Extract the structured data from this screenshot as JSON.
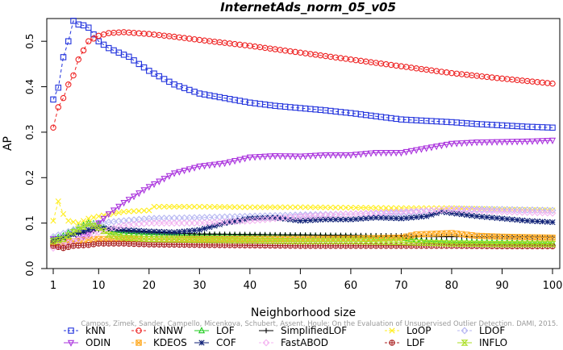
{
  "chart_data": {
    "type": "line",
    "title": "InternetAds_norm_05_v05",
    "xlabel": "Neighborhood size",
    "ylabel": "AP",
    "xlim": [
      1,
      100
    ],
    "ylim": [
      0,
      0.55
    ],
    "x_ticks": [
      "1",
      "10",
      "20",
      "30",
      "40",
      "50",
      "60",
      "70",
      "80",
      "90",
      "100"
    ],
    "y_ticks": [
      "0.0",
      "0.1",
      "0.2",
      "0.3",
      "0.4",
      "0.5"
    ],
    "legend_position": "bottom",
    "annotation": "Campos, Zimek, Sander, Campello, Micenkova, Schubert, Assent, Houle: On the Evaluation of Unsupervised Outlier Detection. DAMI, 2015.",
    "series": [
      {
        "name": "kNN",
        "color": "#2233dd",
        "marker": "square",
        "dash": "4,3",
        "points": [
          [
            1,
            0.372
          ],
          [
            2,
            0.398
          ],
          [
            3,
            0.465
          ],
          [
            4,
            0.5
          ],
          [
            5,
            0.545
          ],
          [
            6,
            0.537
          ],
          [
            7,
            0.535
          ],
          [
            8,
            0.53
          ],
          [
            10,
            0.5
          ],
          [
            12,
            0.485
          ],
          [
            14,
            0.475
          ],
          [
            16,
            0.466
          ],
          [
            18,
            0.45
          ],
          [
            20,
            0.435
          ],
          [
            25,
            0.405
          ],
          [
            30,
            0.385
          ],
          [
            35,
            0.375
          ],
          [
            40,
            0.365
          ],
          [
            45,
            0.358
          ],
          [
            50,
            0.353
          ],
          [
            55,
            0.348
          ],
          [
            60,
            0.342
          ],
          [
            65,
            0.335
          ],
          [
            70,
            0.328
          ],
          [
            75,
            0.325
          ],
          [
            80,
            0.322
          ],
          [
            85,
            0.318
          ],
          [
            90,
            0.315
          ],
          [
            95,
            0.312
          ],
          [
            100,
            0.31
          ]
        ]
      },
      {
        "name": "kNNW",
        "color": "#ee2222",
        "marker": "circle",
        "dash": "4,3",
        "points": [
          [
            1,
            0.31
          ],
          [
            2,
            0.355
          ],
          [
            3,
            0.375
          ],
          [
            4,
            0.405
          ],
          [
            5,
            0.425
          ],
          [
            6,
            0.46
          ],
          [
            7,
            0.48
          ],
          [
            8,
            0.5
          ],
          [
            10,
            0.512
          ],
          [
            12,
            0.518
          ],
          [
            15,
            0.52
          ],
          [
            20,
            0.516
          ],
          [
            25,
            0.51
          ],
          [
            30,
            0.503
          ],
          [
            40,
            0.49
          ],
          [
            50,
            0.475
          ],
          [
            60,
            0.46
          ],
          [
            70,
            0.445
          ],
          [
            80,
            0.43
          ],
          [
            90,
            0.418
          ],
          [
            100,
            0.407
          ]
        ]
      },
      {
        "name": "LOF",
        "color": "#22cc22",
        "marker": "triangle-up",
        "dash": "",
        "points": [
          [
            1,
            0.065
          ],
          [
            3,
            0.072
          ],
          [
            5,
            0.085
          ],
          [
            8,
            0.1
          ],
          [
            10,
            0.098
          ],
          [
            12,
            0.082
          ],
          [
            15,
            0.078
          ],
          [
            20,
            0.075
          ],
          [
            30,
            0.073
          ],
          [
            40,
            0.072
          ],
          [
            50,
            0.071
          ],
          [
            60,
            0.07
          ],
          [
            70,
            0.068
          ],
          [
            75,
            0.06
          ],
          [
            80,
            0.058
          ],
          [
            90,
            0.057
          ],
          [
            100,
            0.056
          ]
        ]
      },
      {
        "name": "SimplifiedLOF",
        "color": "#000000",
        "marker": "plus",
        "dash": "",
        "points": [
          [
            1,
            0.062
          ],
          [
            3,
            0.068
          ],
          [
            5,
            0.075
          ],
          [
            8,
            0.08
          ],
          [
            10,
            0.085
          ],
          [
            13,
            0.086
          ],
          [
            15,
            0.083
          ],
          [
            20,
            0.08
          ],
          [
            30,
            0.076
          ],
          [
            40,
            0.075
          ],
          [
            50,
            0.074
          ],
          [
            60,
            0.073
          ],
          [
            70,
            0.072
          ],
          [
            75,
            0.07
          ],
          [
            80,
            0.07
          ],
          [
            90,
            0.07
          ],
          [
            100,
            0.069
          ]
        ]
      },
      {
        "name": "LoOP",
        "color": "#ffee22",
        "marker": "x",
        "dash": "4,3",
        "points": [
          [
            1,
            0.105
          ],
          [
            2,
            0.148
          ],
          [
            3,
            0.12
          ],
          [
            4,
            0.105
          ],
          [
            6,
            0.1
          ],
          [
            8,
            0.11
          ],
          [
            10,
            0.115
          ],
          [
            15,
            0.125
          ],
          [
            20,
            0.128
          ],
          [
            21,
            0.136
          ],
          [
            30,
            0.136
          ],
          [
            40,
            0.135
          ],
          [
            50,
            0.135
          ],
          [
            60,
            0.134
          ],
          [
            70,
            0.133
          ],
          [
            80,
            0.133
          ],
          [
            90,
            0.13
          ],
          [
            100,
            0.128
          ]
        ]
      },
      {
        "name": "LDOF",
        "color": "#b7b7f2",
        "marker": "diamond",
        "dash": "4,3",
        "points": [
          [
            1,
            0.07
          ],
          [
            5,
            0.085
          ],
          [
            10,
            0.1
          ],
          [
            15,
            0.105
          ],
          [
            20,
            0.11
          ],
          [
            30,
            0.112
          ],
          [
            40,
            0.115
          ],
          [
            50,
            0.118
          ],
          [
            60,
            0.12
          ],
          [
            70,
            0.122
          ],
          [
            75,
            0.126
          ],
          [
            80,
            0.131
          ],
          [
            90,
            0.13
          ],
          [
            100,
            0.128
          ]
        ]
      },
      {
        "name": "ODIN",
        "color": "#aa33dd",
        "marker": "triangle-down",
        "dash": "",
        "points": [
          [
            1,
            0.065
          ],
          [
            3,
            0.058
          ],
          [
            5,
            0.06
          ],
          [
            8,
            0.075
          ],
          [
            10,
            0.1
          ],
          [
            12,
            0.12
          ],
          [
            15,
            0.145
          ],
          [
            20,
            0.18
          ],
          [
            25,
            0.21
          ],
          [
            30,
            0.225
          ],
          [
            35,
            0.232
          ],
          [
            40,
            0.245
          ],
          [
            45,
            0.248
          ],
          [
            50,
            0.247
          ],
          [
            55,
            0.25
          ],
          [
            60,
            0.25
          ],
          [
            65,
            0.255
          ],
          [
            70,
            0.255
          ],
          [
            75,
            0.265
          ],
          [
            80,
            0.275
          ],
          [
            85,
            0.278
          ],
          [
            90,
            0.279
          ],
          [
            95,
            0.28
          ],
          [
            100,
            0.282
          ]
        ]
      },
      {
        "name": "KDEOS",
        "color": "#ffaa22",
        "marker": "square-x",
        "dash": "4,3",
        "points": [
          [
            1,
            0.055
          ],
          [
            5,
            0.06
          ],
          [
            10,
            0.065
          ],
          [
            20,
            0.065
          ],
          [
            30,
            0.065
          ],
          [
            40,
            0.065
          ],
          [
            50,
            0.065
          ],
          [
            60,
            0.066
          ],
          [
            70,
            0.068
          ],
          [
            73,
            0.075
          ],
          [
            80,
            0.078
          ],
          [
            85,
            0.072
          ],
          [
            90,
            0.07
          ],
          [
            100,
            0.068
          ]
        ]
      },
      {
        "name": "COF",
        "color": "#112277",
        "marker": "asterisk",
        "dash": "",
        "points": [
          [
            1,
            0.062
          ],
          [
            3,
            0.068
          ],
          [
            5,
            0.075
          ],
          [
            8,
            0.085
          ],
          [
            10,
            0.09
          ],
          [
            15,
            0.085
          ],
          [
            20,
            0.082
          ],
          [
            25,
            0.08
          ],
          [
            30,
            0.085
          ],
          [
            35,
            0.1
          ],
          [
            40,
            0.11
          ],
          [
            45,
            0.112
          ],
          [
            50,
            0.105
          ],
          [
            55,
            0.108
          ],
          [
            60,
            0.108
          ],
          [
            65,
            0.112
          ],
          [
            70,
            0.11
          ],
          [
            75,
            0.115
          ],
          [
            78,
            0.125
          ],
          [
            80,
            0.122
          ],
          [
            85,
            0.115
          ],
          [
            90,
            0.11
          ],
          [
            95,
            0.105
          ],
          [
            100,
            0.102
          ]
        ]
      },
      {
        "name": "FastABOD",
        "color": "#f3b3f0",
        "marker": "diamond",
        "dash": "4,3",
        "points": [
          [
            1,
            0.045
          ],
          [
            5,
            0.06
          ],
          [
            10,
            0.08
          ],
          [
            15,
            0.095
          ],
          [
            20,
            0.1
          ],
          [
            25,
            0.1
          ],
          [
            30,
            0.1
          ],
          [
            40,
            0.105
          ],
          [
            50,
            0.115
          ],
          [
            60,
            0.12
          ],
          [
            70,
            0.125
          ],
          [
            80,
            0.13
          ],
          [
            90,
            0.125
          ],
          [
            100,
            0.122
          ]
        ]
      },
      {
        "name": "LDF",
        "color": "#aa2222",
        "marker": "circle-plus",
        "dash": "4,3",
        "points": [
          [
            1,
            0.05
          ],
          [
            3,
            0.045
          ],
          [
            5,
            0.05
          ],
          [
            8,
            0.052
          ],
          [
            10,
            0.055
          ],
          [
            15,
            0.055
          ],
          [
            20,
            0.053
          ],
          [
            30,
            0.052
          ],
          [
            40,
            0.051
          ],
          [
            50,
            0.05
          ],
          [
            60,
            0.05
          ],
          [
            70,
            0.05
          ],
          [
            80,
            0.05
          ],
          [
            90,
            0.049
          ],
          [
            100,
            0.049
          ]
        ]
      },
      {
        "name": "INFLO",
        "color": "#aadd22",
        "marker": "hourglass",
        "dash": "",
        "points": [
          [
            1,
            0.06
          ],
          [
            3,
            0.065
          ],
          [
            5,
            0.08
          ],
          [
            8,
            0.098
          ],
          [
            10,
            0.09
          ],
          [
            12,
            0.075
          ],
          [
            15,
            0.068
          ],
          [
            20,
            0.065
          ],
          [
            30,
            0.063
          ],
          [
            40,
            0.062
          ],
          [
            50,
            0.06
          ],
          [
            60,
            0.06
          ],
          [
            70,
            0.058
          ],
          [
            80,
            0.055
          ],
          [
            90,
            0.054
          ],
          [
            100,
            0.054
          ]
        ]
      }
    ]
  }
}
